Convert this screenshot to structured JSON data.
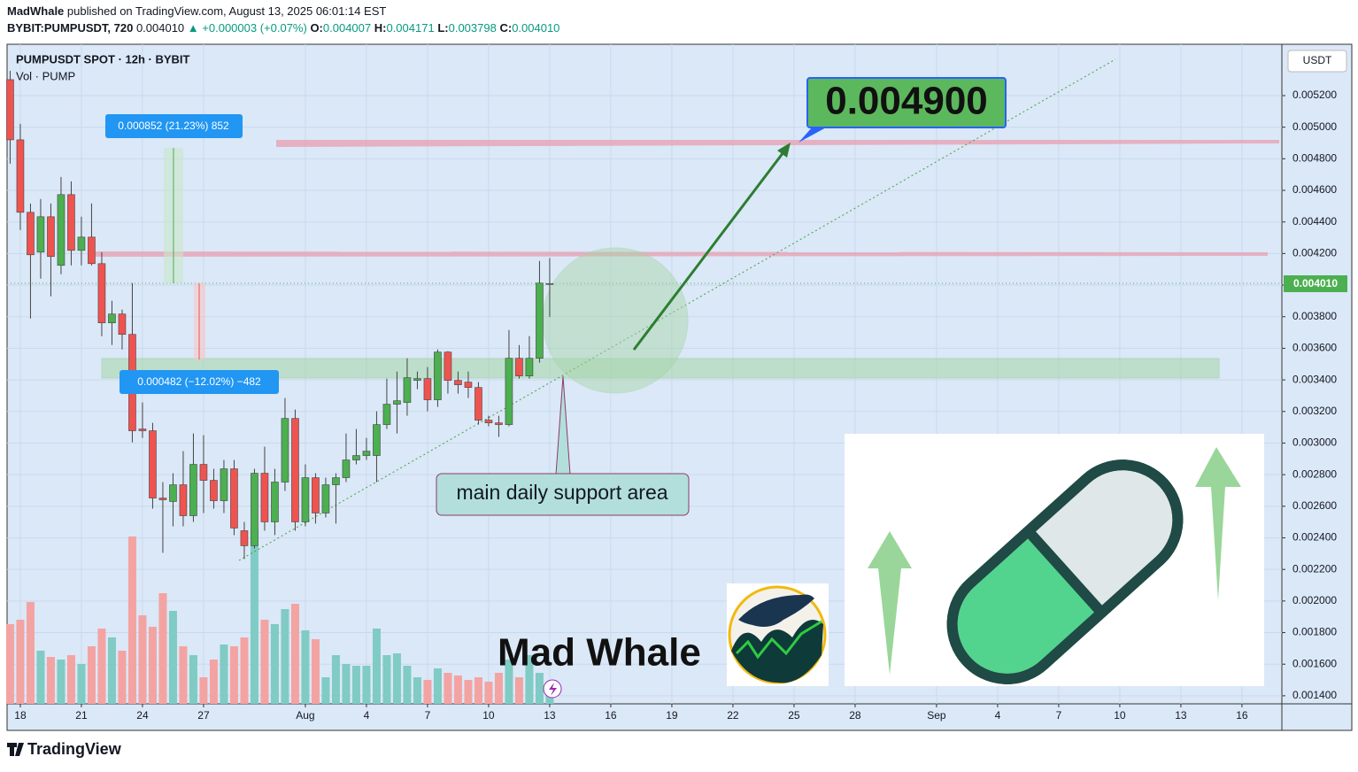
{
  "header": {
    "author": "MadWhale",
    "published": "published on TradingView.com, August 13, 2025 06:01:14 EST",
    "symbol": "BYBIT:PUMPUSDT, 720",
    "last": "0.004010",
    "change": "▲ +0.000003 (+0.07%)",
    "o_label": "O:",
    "o": "0.004007",
    "h_label": "H:",
    "h": "0.004171",
    "l_label": "L:",
    "l": "0.003798",
    "c_label": "C:",
    "c": "0.004010"
  },
  "footer": {
    "brand": "TradingView"
  },
  "chart_data": {
    "type": "candlestick",
    "title": "PUMPUSDT SPOT · 12h · BYBIT",
    "subtitle": "Vol · PUMP",
    "x": [
      -0.5,
      0,
      0.5,
      1,
      1.5,
      2,
      2.5,
      3,
      3.5,
      4,
      4.5,
      5,
      5.5,
      6,
      6.5,
      7,
      7.5,
      8,
      8.5,
      9,
      9.5,
      10,
      10.5,
      11,
      11.5,
      12,
      12.5,
      13,
      13.5,
      14,
      14.5,
      15,
      15.5,
      16,
      16.5,
      17,
      17.5,
      18,
      18.5,
      19,
      19.5,
      20,
      20.5,
      21,
      21.5,
      22,
      22.5,
      23,
      23.5,
      24,
      24.5,
      25,
      25.5,
      26
    ],
    "open": [
      0.005301,
      0.00492,
      0.004461,
      0.004209,
      0.004433,
      0.004125,
      0.004573,
      0.00422,
      0.004304,
      0.004136,
      0.003761,
      0.003817,
      0.003688,
      0.003089,
      0.003078,
      0.002652,
      0.00263,
      0.002736,
      0.00254,
      0.002865,
      0.002764,
      0.002635,
      0.002837,
      0.002445,
      0.00235,
      0.002809,
      0.002501,
      0.002753,
      0.003156,
      0.002501,
      0.002781,
      0.002557,
      0.002736,
      0.002781,
      0.002893,
      0.002921,
      0.002921,
      0.003117,
      0.003246,
      0.003257,
      0.003397,
      0.003408,
      0.003274,
      0.003576,
      0.003397,
      0.003386,
      0.003352,
      0.003145,
      0.003128,
      0.003117,
      0.003537,
      0.003425,
      0.003537,
      0.004007
    ],
    "high": [
      0.005357,
      0.005021,
      0.004517,
      0.004545,
      0.004517,
      0.004685,
      0.004657,
      0.004433,
      0.004517,
      0.004209,
      0.003901,
      0.003845,
      0.004013,
      0.003257,
      0.003128,
      0.002753,
      0.002809,
      0.002949,
      0.003061,
      0.00305,
      0.002837,
      0.002893,
      0.002893,
      0.002501,
      0.002837,
      0.002977,
      0.002837,
      0.003285,
      0.003212,
      0.002865,
      0.002809,
      0.002781,
      0.002809,
      0.003061,
      0.003089,
      0.003033,
      0.003201,
      0.003408,
      0.003453,
      0.003537,
      0.003453,
      0.003481,
      0.003593,
      0.003582,
      0.003453,
      0.003453,
      0.003386,
      0.003173,
      0.003173,
      0.003716,
      0.003621,
      0.003677,
      0.004153,
      0.004171
    ],
    "low": [
      0.004769,
      0.004349,
      0.003789,
      0.004041,
      0.003929,
      0.004069,
      0.004125,
      0.004125,
      0.004125,
      0.003677,
      0.003621,
      0.003593,
      0.003005,
      0.003033,
      0.002585,
      0.002305,
      0.002473,
      0.002473,
      0.002501,
      0.002557,
      0.002585,
      0.002557,
      0.002417,
      0.002266,
      0.002333,
      0.002445,
      0.002417,
      0.002697,
      0.002445,
      0.002473,
      0.00249,
      0.002529,
      0.00249,
      0.002753,
      0.002865,
      0.002893,
      0.002753,
      0.003089,
      0.003061,
      0.003173,
      0.003341,
      0.003201,
      0.003229,
      0.003313,
      0.003313,
      0.003285,
      0.003117,
      0.003106,
      0.003039,
      0.003106,
      0.003408,
      0.003408,
      0.003509,
      0.003798
    ],
    "close": [
      0.00492,
      0.004461,
      0.004192,
      0.004433,
      0.004181,
      0.004573,
      0.00422,
      0.004304,
      0.004136,
      0.003761,
      0.003817,
      0.003688,
      0.003078,
      0.003078,
      0.002652,
      0.002641,
      0.002736,
      0.00254,
      0.002865,
      0.002764,
      0.002635,
      0.002837,
      0.002462,
      0.00235,
      0.002809,
      0.002501,
      0.002753,
      0.003156,
      0.002501,
      0.002781,
      0.002557,
      0.002736,
      0.002781,
      0.002893,
      0.002921,
      0.002949,
      0.003117,
      0.003246,
      0.003268,
      0.003414,
      0.003408,
      0.003274,
      0.003576,
      0.003397,
      0.003369,
      0.003352,
      0.003145,
      0.003128,
      0.003117,
      0.003537,
      0.003425,
      0.003537,
      0.004013,
      0.00401
    ],
    "volume": [
      90,
      95,
      115,
      60,
      53,
      50,
      55,
      45,
      65,
      85,
      75,
      60,
      189,
      100,
      87,
      125,
      105,
      65,
      55,
      30,
      50,
      67,
      65,
      75,
      197,
      95,
      90,
      107,
      113,
      83,
      73,
      30,
      55,
      45,
      43,
      43,
      85,
      55,
      57,
      43,
      30,
      27,
      40,
      35,
      32,
      27,
      30,
      25,
      35,
      50,
      30,
      55,
      35,
      25
    ],
    "up_color": "#4caf50",
    "down_color": "#ef5350",
    "volume_up_color": "#80cbc4",
    "volume_down_color": "#f4a3a3",
    "xlim": [
      -0.65,
      61.96
    ],
    "xticks": [
      {
        "value": 0,
        "label": "18"
      },
      {
        "value": 3,
        "label": "21"
      },
      {
        "value": 6,
        "label": "24"
      },
      {
        "value": 9,
        "label": "27"
      },
      {
        "value": 14,
        "label": "Aug"
      },
      {
        "value": 17,
        "label": "4"
      },
      {
        "value": 20,
        "label": "7"
      },
      {
        "value": 23,
        "label": "10"
      },
      {
        "value": 26,
        "label": "13"
      },
      {
        "value": 29,
        "label": "16"
      },
      {
        "value": 32,
        "label": "19"
      },
      {
        "value": 35,
        "label": "22"
      },
      {
        "value": 38,
        "label": "25"
      },
      {
        "value": 41,
        "label": "28"
      },
      {
        "value": 45,
        "label": "Sep"
      },
      {
        "value": 48,
        "label": "4"
      },
      {
        "value": 51,
        "label": "7"
      },
      {
        "value": 54,
        "label": "10"
      },
      {
        "value": 57,
        "label": "13"
      },
      {
        "value": 60,
        "label": "16"
      }
    ],
    "ylim": [
      0.001349,
      0.005525
    ],
    "yticks": [
      {
        "value": 0.0014,
        "label": "0.001400"
      },
      {
        "value": 0.0016,
        "label": "0.001600"
      },
      {
        "value": 0.0018,
        "label": "0.001800"
      },
      {
        "value": 0.002,
        "label": "0.002000"
      },
      {
        "value": 0.0022,
        "label": "0.002200"
      },
      {
        "value": 0.0024,
        "label": "0.002400"
      },
      {
        "value": 0.0026,
        "label": "0.002600"
      },
      {
        "value": 0.0028,
        "label": "0.002800"
      },
      {
        "value": 0.003,
        "label": "0.003000"
      },
      {
        "value": 0.0032,
        "label": "0.003200"
      },
      {
        "value": 0.0034,
        "label": "0.003400"
      },
      {
        "value": 0.0036,
        "label": "0.003600"
      },
      {
        "value": 0.0038,
        "label": "0.003800"
      },
      {
        "value": 0.004,
        "label": "0.004000"
      },
      {
        "value": 0.0042,
        "label": "0.004200"
      },
      {
        "value": 0.0044,
        "label": "0.004400"
      },
      {
        "value": 0.0046,
        "label": "0.004600"
      },
      {
        "value": 0.0048,
        "label": "0.004800"
      },
      {
        "value": 0.005,
        "label": "0.005000"
      },
      {
        "value": 0.0052,
        "label": "0.005200"
      }
    ],
    "grid": true,
    "y_axis_unit": "USDT",
    "last_price_label": "0.004010",
    "annotations": {
      "target": "0.004900",
      "support": "main daily support area",
      "gain": "0.000852 (21.23%) 852",
      "loss": "0.000482 (−12.02%) −482",
      "watermark": "Mad Whale"
    }
  }
}
